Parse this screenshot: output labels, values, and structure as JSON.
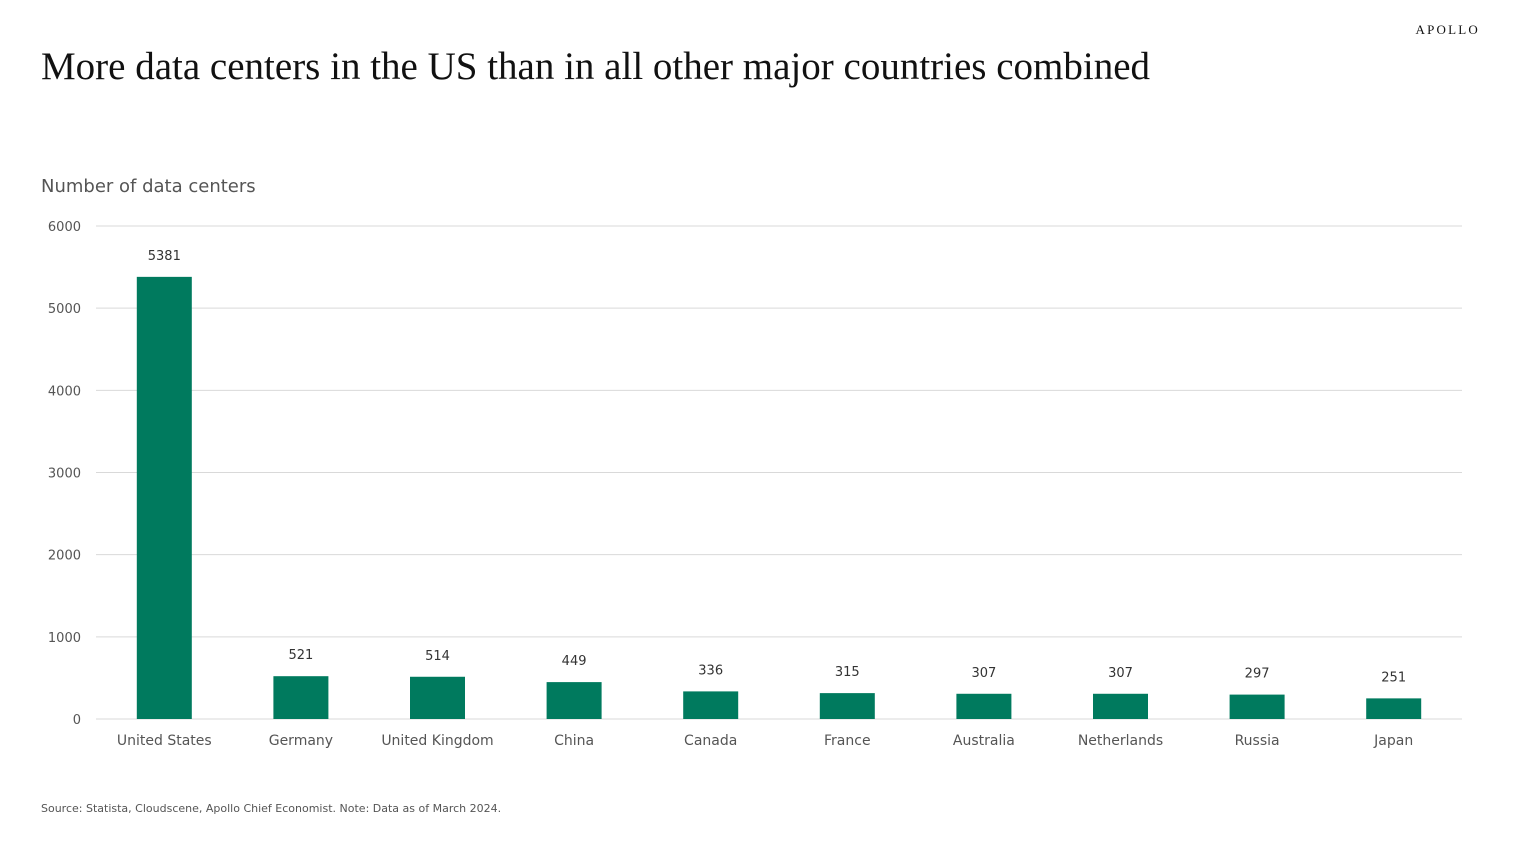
{
  "header": {
    "brand": "APOLLO",
    "title": "More data centers in the US than in all other major countries combined"
  },
  "chart_data": {
    "type": "bar",
    "title": "More data centers in the US than in all other major countries combined",
    "ylabel": "Number of data centers",
    "xlabel": "",
    "categories": [
      "United States",
      "Germany",
      "United Kingdom",
      "China",
      "Canada",
      "France",
      "Australia",
      "Netherlands",
      "Russia",
      "Japan"
    ],
    "values": [
      5381,
      521,
      514,
      449,
      336,
      315,
      307,
      307,
      297,
      251
    ],
    "ylim": [
      0,
      6000
    ],
    "yticks": [
      0,
      1000,
      2000,
      3000,
      4000,
      5000,
      6000
    ],
    "grid": true,
    "legend": "none",
    "bar_color": "#007A5E",
    "grid_color": "#d9d9d9"
  },
  "footer": {
    "source": "Source: Statista, Cloudscene, Apollo Chief Economist. Note: Data as of March 2024."
  }
}
